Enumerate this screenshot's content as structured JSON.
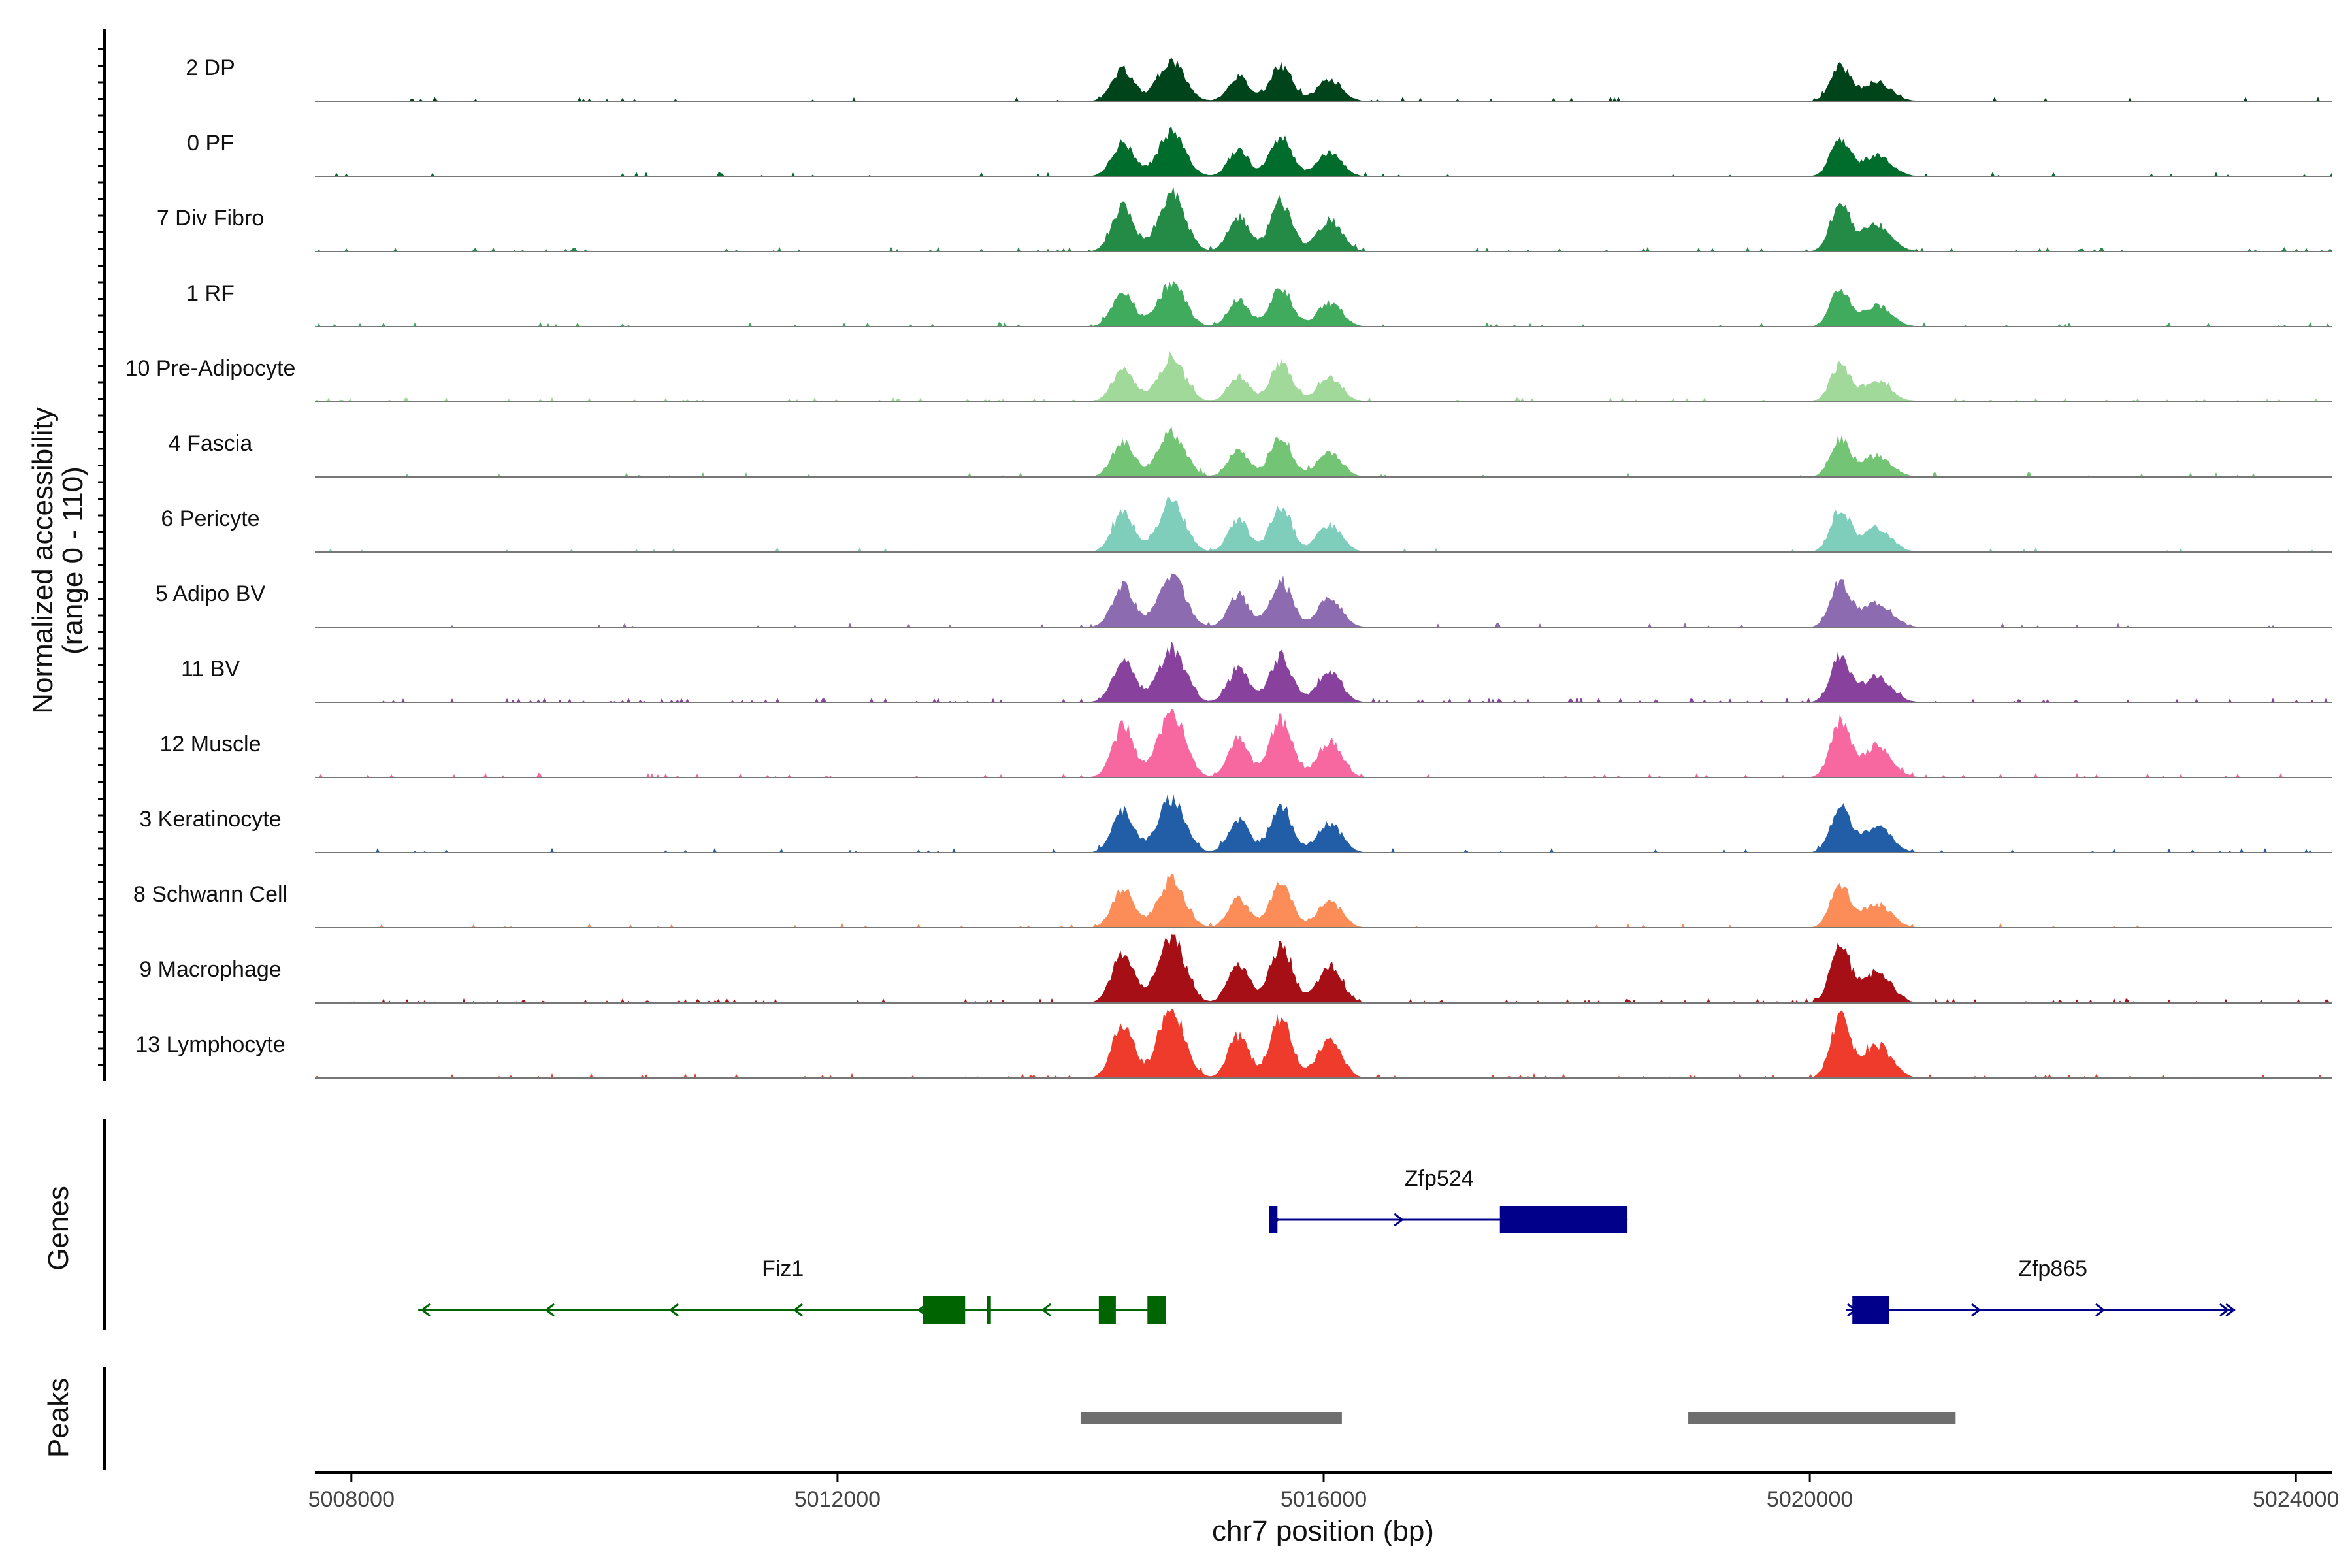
{
  "chart_data": {
    "type": "area",
    "title": "",
    "ylabel_line1": "Normalized accessibility",
    "ylabel_line2": "(range 0 - 110)",
    "xlabel": "chr7 position (bp)",
    "xlim": [
      5007700,
      5024300
    ],
    "ylim": [
      0,
      110
    ],
    "x_ticks": [
      5008000,
      5012000,
      5016000,
      5020000,
      5024000
    ],
    "x_tick_labels": [
      "5008000",
      "5012000",
      "5016000",
      "5020000",
      "5024000"
    ],
    "section_labels": {
      "genes": "Genes",
      "peaks": "Peaks"
    },
    "peak_template": [
      {
        "center": 5014350,
        "width": 90,
        "height": 0.78
      },
      {
        "center": 5014750,
        "width": 110,
        "height": 1.0
      },
      {
        "center": 5015300,
        "width": 85,
        "height": 0.62
      },
      {
        "center": 5015650,
        "width": 90,
        "height": 0.88
      },
      {
        "center": 5016050,
        "width": 100,
        "height": 0.55
      },
      {
        "center": 5020250,
        "width": 80,
        "height": 0.85
      },
      {
        "center": 5020550,
        "width": 120,
        "height": 0.48
      }
    ],
    "series": [
      {
        "name": "2 DP",
        "color": "#00441b",
        "scale": 65,
        "noise": 1
      },
      {
        "name": "0 PF",
        "color": "#006d2c",
        "scale": 70,
        "noise": 1
      },
      {
        "name": "7 Div Fibro",
        "color": "#238b45",
        "scale": 92,
        "noise": 2
      },
      {
        "name": "1 RF",
        "color": "#41ab5d",
        "scale": 70,
        "noise": 1
      },
      {
        "name": "10 Pre-Adipocyte",
        "color": "#a1d99b",
        "scale": 68,
        "noise": 2
      },
      {
        "name": "4 Fascia",
        "color": "#74c476",
        "scale": 72,
        "noise": 1
      },
      {
        "name": "6 Pericyte",
        "color": "#7fcdbb",
        "scale": 82,
        "noise": 1
      },
      {
        "name": "5 Adipo BV",
        "color": "#8c6bb1",
        "scale": 85,
        "noise": 1
      },
      {
        "name": "11 BV",
        "color": "#88419d",
        "scale": 85,
        "noise": 3
      },
      {
        "name": "12 Muscle",
        "color": "#f768a1",
        "scale": 104,
        "noise": 2
      },
      {
        "name": "3 Keratinocyte",
        "color": "#225ea8",
        "scale": 86,
        "noise": 1
      },
      {
        "name": "8 Schwann Cell",
        "color": "#fc8d59",
        "scale": 78,
        "noise": 1
      },
      {
        "name": "9 Macrophage",
        "color": "#a50f15",
        "scale": 106,
        "noise": 3
      },
      {
        "name": "13 Lymphocyte",
        "color": "#ef3b2c",
        "scale": 110,
        "noise": 2
      }
    ],
    "genes": [
      {
        "name": "Zfp524",
        "strand": "+",
        "start": 5015550,
        "end": 5018500,
        "color": "#00008b",
        "row": 0,
        "exons": [
          [
            5015550,
            5015620
          ],
          [
            5017450,
            5018500
          ]
        ],
        "label_pos": 5016950
      },
      {
        "name": "Fiz1",
        "strand": "-",
        "start": 5008550,
        "end": 5014700,
        "color": "#006400",
        "row": 1,
        "exons": [
          [
            5012700,
            5013050
          ],
          [
            5013230,
            5013260
          ],
          [
            5014150,
            5014290
          ],
          [
            5014550,
            5014700
          ]
        ],
        "label_pos": 5011550
      },
      {
        "name": "Zfp865",
        "strand": "+",
        "start": 5020300,
        "end": 5023500,
        "color": "#00008b",
        "row": 1,
        "exons": [
          [
            5020350,
            5020650
          ]
        ],
        "label_pos": 5022000
      }
    ],
    "peaks": [
      {
        "start": 5014000,
        "end": 5016150
      },
      {
        "start": 5019000,
        "end": 5021200
      }
    ]
  }
}
